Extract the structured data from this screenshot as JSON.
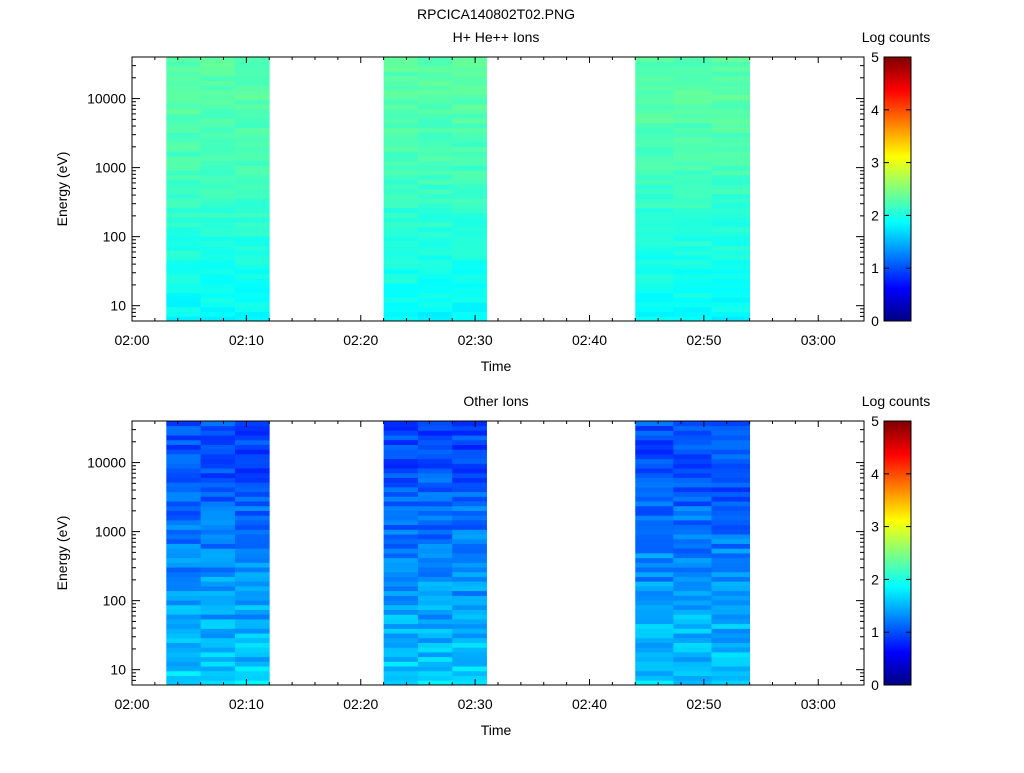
{
  "title": "RPCICA140802T02.PNG",
  "colorbar": {
    "label": "Log counts",
    "ticks": [
      "0",
      "1",
      "2",
      "3",
      "4",
      "5"
    ],
    "range": [
      0,
      5
    ],
    "colormap": "jet"
  },
  "chart_data": [
    {
      "type": "heatmap",
      "title": "H+ He++ Ions",
      "xlabel": "Time",
      "ylabel": "Energy (eV)",
      "x_ticks": [
        "02:00",
        "02:10",
        "02:20",
        "02:30",
        "02:40",
        "02:50",
        "03:00"
      ],
      "x_range_minutes": [
        0,
        64
      ],
      "y_scale": "log",
      "y_ticks": [
        "10",
        "100",
        "1000",
        "10000"
      ],
      "y_range": [
        6,
        40000
      ],
      "colorbar_label": "Log counts",
      "value_range": [
        0,
        5
      ],
      "time_blocks": [
        {
          "start": "02:03",
          "end": "02:12",
          "columns": 3
        },
        {
          "start": "02:22",
          "end": "02:31",
          "columns": 3
        },
        {
          "start": "02:44",
          "end": "02:54",
          "columns": 3
        }
      ],
      "typical_levels": {
        "low_energy": 1.9,
        "mid_energy": 2.2,
        "high_energy": 2.3
      }
    },
    {
      "type": "heatmap",
      "title": "Other Ions",
      "xlabel": "Time",
      "ylabel": "Energy (eV)",
      "x_ticks": [
        "02:00",
        "02:10",
        "02:20",
        "02:30",
        "02:40",
        "02:50",
        "03:00"
      ],
      "x_range_minutes": [
        0,
        64
      ],
      "y_scale": "log",
      "y_ticks": [
        "10",
        "100",
        "1000",
        "10000"
      ],
      "y_range": [
        6,
        40000
      ],
      "colorbar_label": "Log counts",
      "value_range": [
        0,
        5
      ],
      "time_blocks": [
        {
          "start": "02:03",
          "end": "02:12",
          "columns": 3
        },
        {
          "start": "02:22",
          "end": "02:31",
          "columns": 3
        },
        {
          "start": "02:44",
          "end": "02:54",
          "columns": 3
        }
      ],
      "typical_levels": {
        "low_energy": 1.6,
        "mid_energy": 1.2,
        "high_energy": 1.0
      }
    }
  ]
}
